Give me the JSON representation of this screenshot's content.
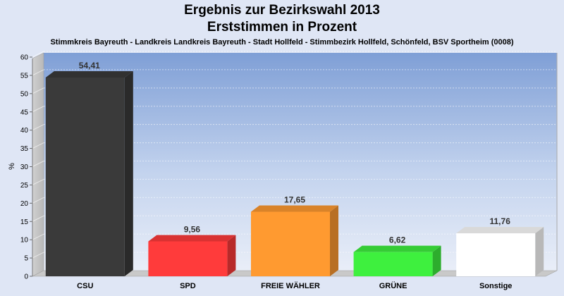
{
  "chart_data": {
    "type": "bar",
    "title": "Ergebnis zur Bezirkswahl 2013",
    "subtitle": "Erststimmen in Prozent",
    "description": "Stimmkreis Bayreuth - Landkreis Landkreis Bayreuth - Stadt Hollfeld - Stimmbezirk Hollfeld, Schönfeld, BSV Sportheim (0008)",
    "xlabel": "",
    "ylabel": "%",
    "ylim": [
      0,
      60
    ],
    "yticks": [
      "0",
      "5",
      "10",
      "15",
      "20",
      "25",
      "30",
      "35",
      "40",
      "45",
      "50",
      "55",
      "60"
    ],
    "categories": [
      "CSU",
      "SPD",
      "FREIE WÄHLER",
      "GRÜNE",
      "Sonstige"
    ],
    "values": [
      54.41,
      9.56,
      17.65,
      6.62,
      11.76
    ],
    "value_labels": [
      "54,41",
      "9,56",
      "17,65",
      "6,62",
      "11,76"
    ],
    "colors": [
      "#3a3a3a",
      "#ff3b3b",
      "#ff9a30",
      "#3ef03e",
      "#ffffff"
    ],
    "grid": true
  }
}
